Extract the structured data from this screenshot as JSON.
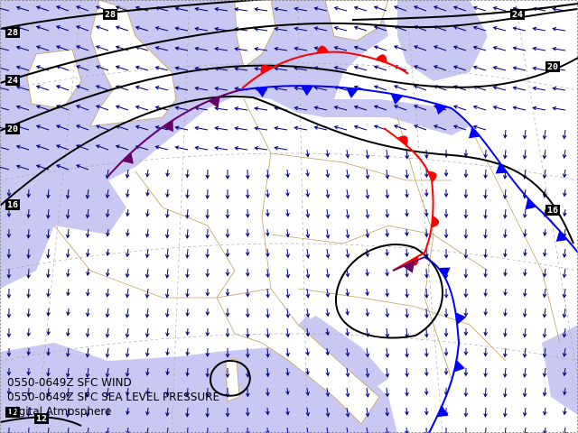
{
  "isobar_labels": [
    {
      "label": "28"
    },
    {
      "label": "28"
    },
    {
      "label": "24"
    },
    {
      "label": "24"
    },
    {
      "label": "20"
    },
    {
      "label": "20"
    },
    {
      "label": "16"
    },
    {
      "label": "16"
    },
    {
      "label": "12"
    },
    {
      "label": "12"
    }
  ],
  "caption": [
    "0550-0649Z SFC WIND",
    "0550-0649Z SFC SEA LEVEL PRESSURE",
    "Digital Atmosphere"
  ]
}
